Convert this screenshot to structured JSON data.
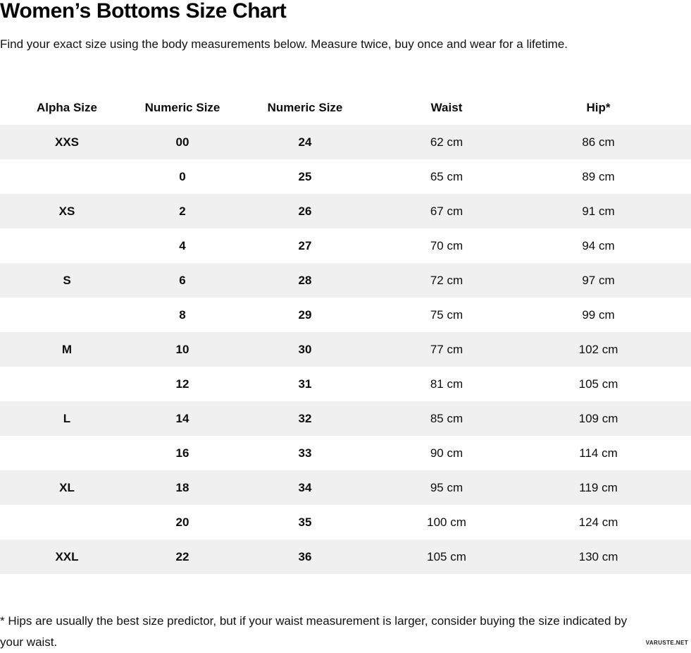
{
  "page": {
    "title": "Women’s Bottoms Size Chart",
    "subtitle": "Find your exact size using the body measurements below. Measure twice, buy once and wear for a lifetime.",
    "footnote": "* Hips are usually the best size predictor, but if your waist measurement is larger, consider buying the size indicated by your waist.",
    "watermark": "VARUSTE.NET"
  },
  "colors": {
    "row_stripe": "#f0f0f0",
    "text": "#0d0d0d",
    "background": "#ffffff"
  },
  "chart_data": {
    "type": "table",
    "title": "Women’s Bottoms Size Chart",
    "columns": [
      "Alpha Size",
      "Numeric Size",
      "Numeric Size",
      "Waist",
      "Hip*"
    ],
    "rows": [
      [
        "XXS",
        "00",
        "24",
        "62 cm",
        "86 cm"
      ],
      [
        "",
        "0",
        "25",
        "65 cm",
        "89 cm"
      ],
      [
        "XS",
        "2",
        "26",
        "67 cm",
        "91 cm"
      ],
      [
        "",
        "4",
        "27",
        "70 cm",
        "94 cm"
      ],
      [
        "S",
        "6",
        "28",
        "72 cm",
        "97 cm"
      ],
      [
        "",
        "8",
        "29",
        "75 cm",
        "99 cm"
      ],
      [
        "M",
        "10",
        "30",
        "77 cm",
        "102 cm"
      ],
      [
        "",
        "12",
        "31",
        "81 cm",
        "105 cm"
      ],
      [
        "L",
        "14",
        "32",
        "85 cm",
        "109 cm"
      ],
      [
        "",
        "16",
        "33",
        "90 cm",
        "114 cm"
      ],
      [
        "XL",
        "18",
        "34",
        "95 cm",
        "119 cm"
      ],
      [
        "",
        "20",
        "35",
        "100 cm",
        "124 cm"
      ],
      [
        "XXL",
        "22",
        "36",
        "105 cm",
        "130 cm"
      ]
    ]
  }
}
